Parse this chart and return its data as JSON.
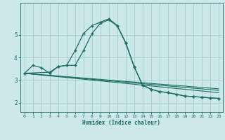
{
  "xlabel": "Humidex (Indice chaleur)",
  "ylabel": "",
  "bg_color": "#cce8e8",
  "grid_color": "#aacece",
  "line_color": "#1a6e60",
  "xlim": [
    -0.5,
    23.5
  ],
  "ylim": [
    1.6,
    6.4
  ],
  "yticks": [
    2,
    3,
    4,
    5
  ],
  "xticks": [
    0,
    1,
    2,
    3,
    4,
    5,
    6,
    7,
    8,
    9,
    10,
    11,
    12,
    13,
    14,
    15,
    16,
    17,
    18,
    19,
    20,
    21,
    22,
    23
  ],
  "line1_x": [
    0,
    1,
    2,
    3,
    4,
    5,
    6,
    7,
    8,
    9,
    10,
    11,
    12,
    13,
    14,
    15,
    16,
    17,
    18,
    19,
    20,
    21,
    22,
    23
  ],
  "line1_y": [
    3.3,
    3.65,
    3.55,
    3.3,
    3.6,
    3.65,
    4.3,
    5.05,
    5.4,
    5.55,
    5.7,
    5.4,
    4.65,
    3.6,
    2.78,
    2.6,
    2.5,
    2.45,
    2.38,
    2.3,
    2.28,
    2.25,
    2.22,
    2.2
  ],
  "line2_x": [
    0,
    3,
    4,
    5,
    6,
    7,
    8,
    9,
    10,
    11,
    12,
    13,
    14,
    15,
    16,
    17,
    18,
    19,
    20,
    21,
    22,
    23
  ],
  "line2_y": [
    3.3,
    3.35,
    3.6,
    3.65,
    3.65,
    4.3,
    5.05,
    5.5,
    5.65,
    5.38,
    4.63,
    3.58,
    2.78,
    2.6,
    2.5,
    2.45,
    2.38,
    2.3,
    2.28,
    2.25,
    2.22,
    2.2
  ],
  "line3_x": [
    0,
    23
  ],
  "line3_y": [
    3.3,
    2.45
  ],
  "line4_x": [
    0,
    23
  ],
  "line4_y": [
    3.3,
    2.55
  ],
  "line5_x": [
    0,
    23
  ],
  "line5_y": [
    3.3,
    2.62
  ]
}
